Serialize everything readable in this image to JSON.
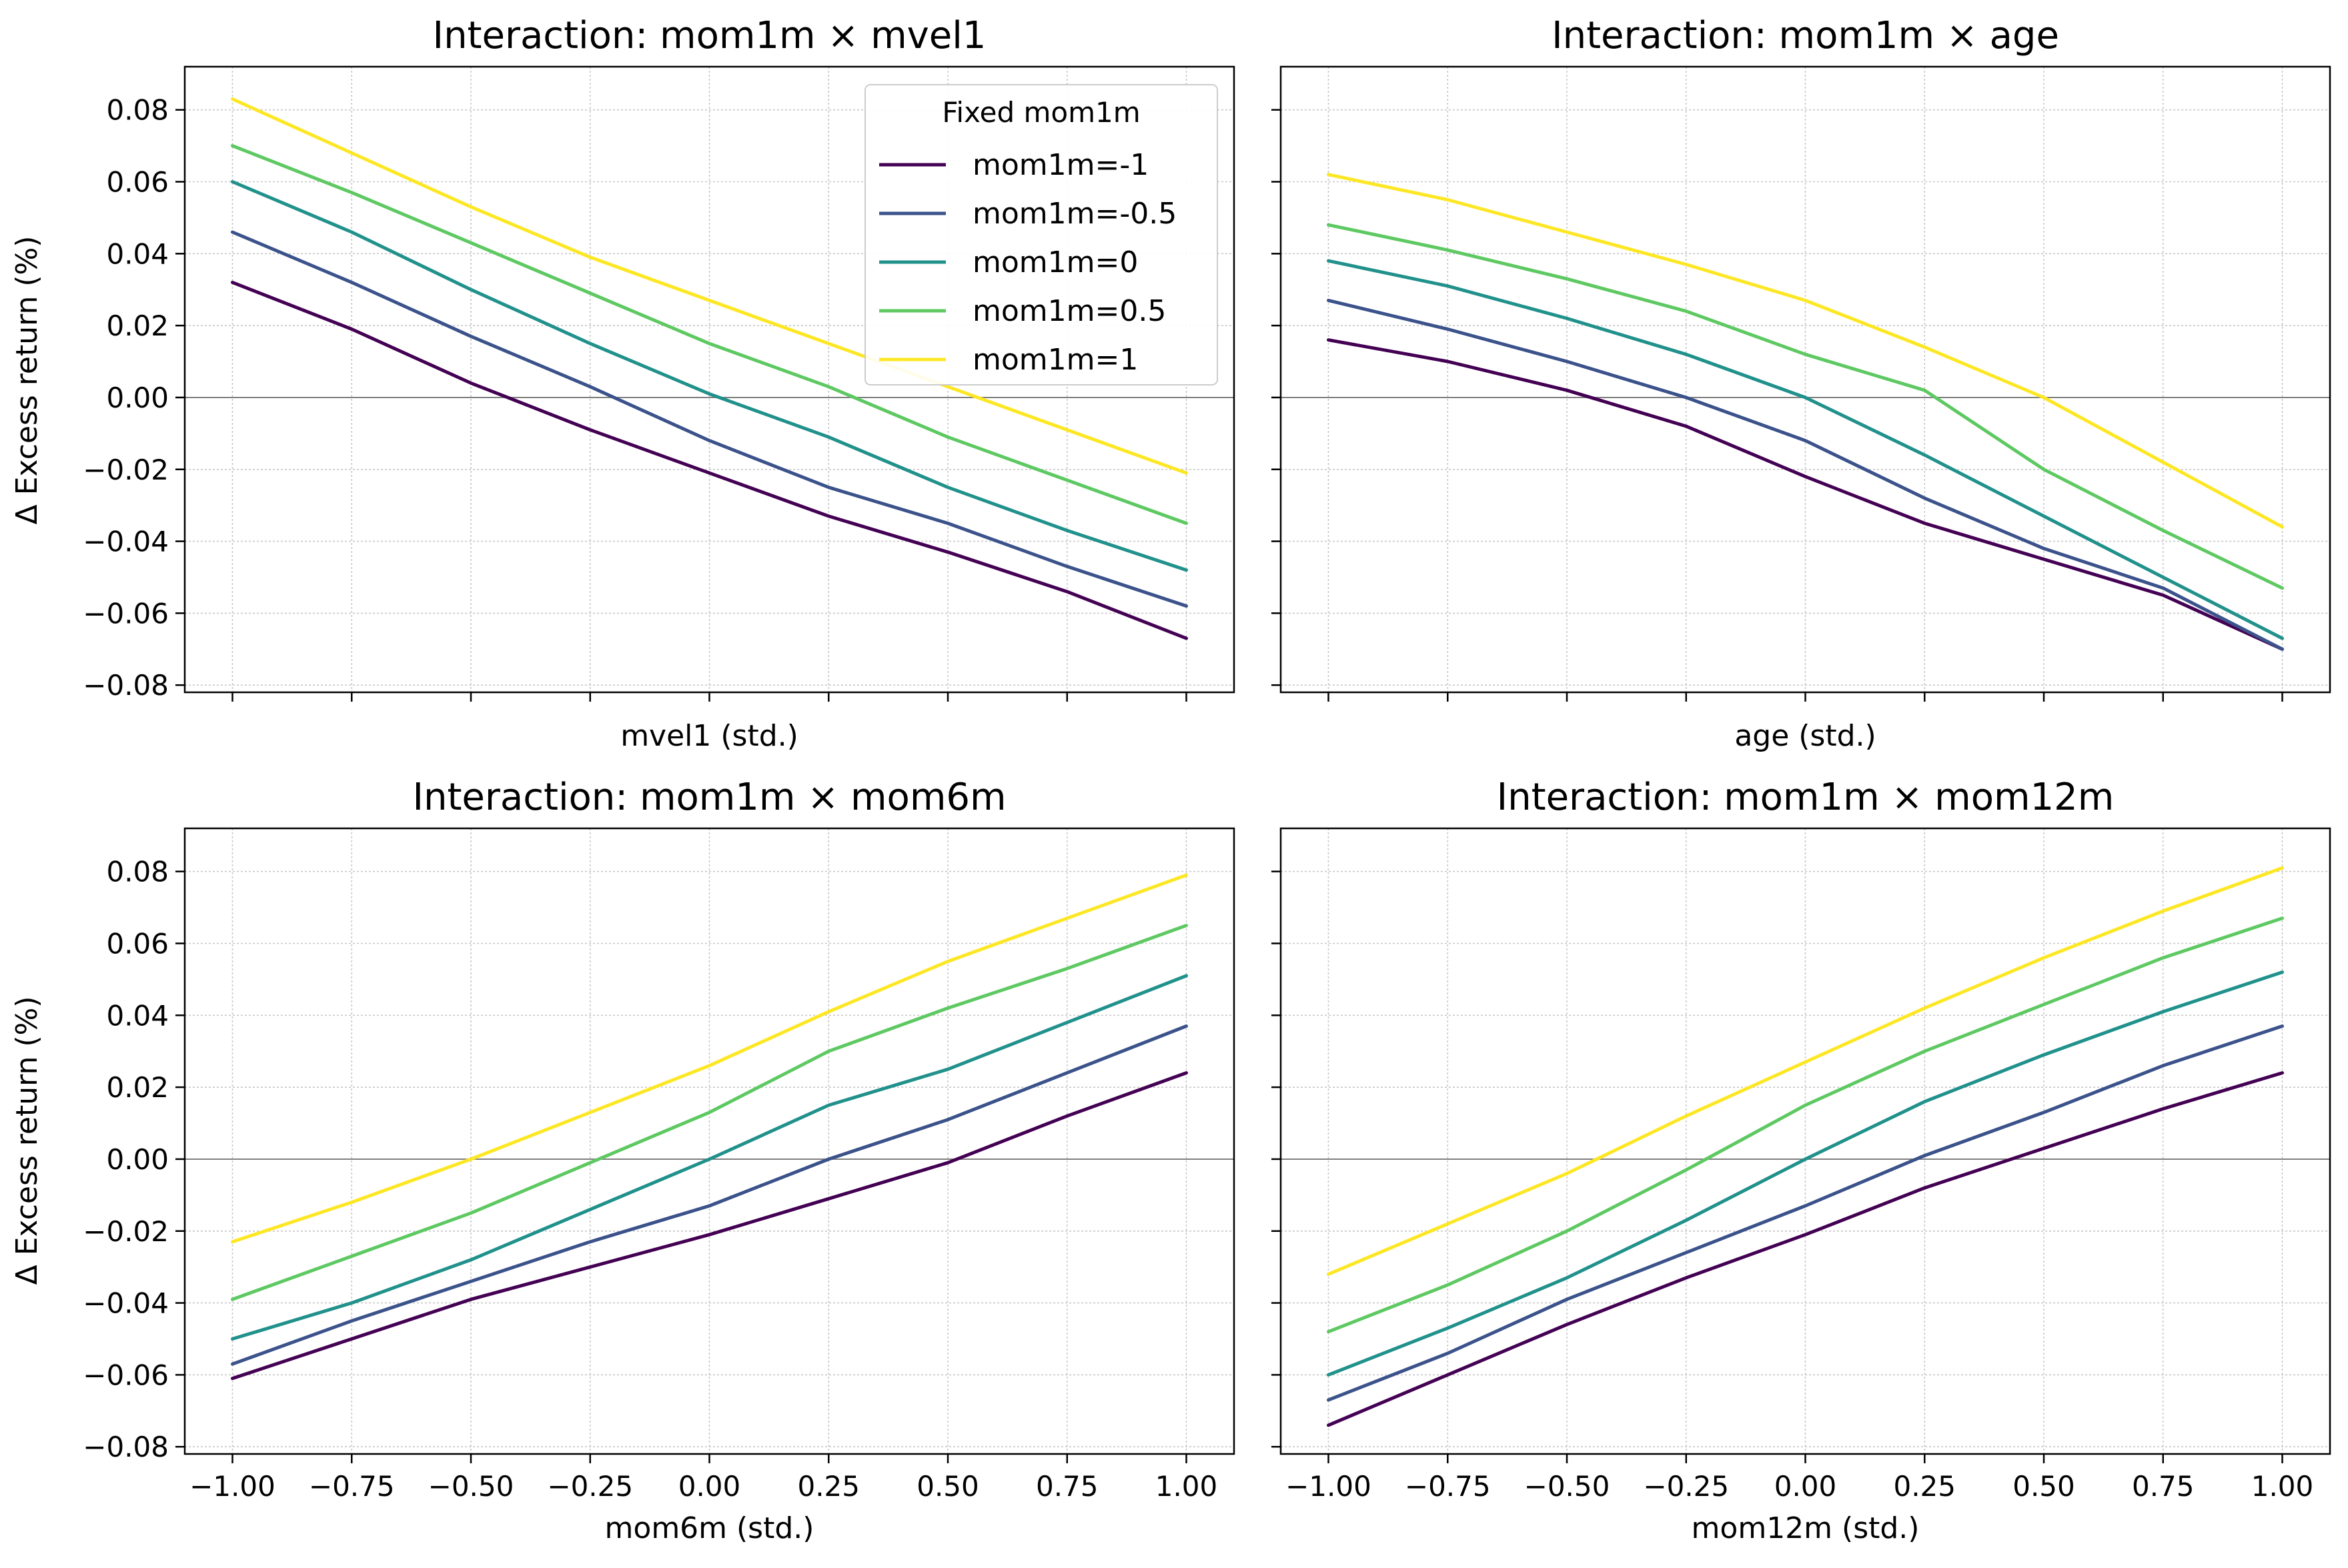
{
  "figure": {
    "ylabel": "Δ Excess return (%)",
    "legend_title": "Fixed mom1m",
    "legend_location": "top-right of first panel",
    "series_colors": [
      "#440154",
      "#3b528b",
      "#21918c",
      "#5ec962",
      "#fde725"
    ],
    "grid": true,
    "zero_line_color": "#808080"
  },
  "chart_data": [
    {
      "type": "line",
      "title": "Interaction: mom1m × mvel1",
      "xlabel": "mvel1 (std.)",
      "show_xticklabels": false,
      "xlim": [
        -1.1,
        1.1
      ],
      "ylim": [
        -0.082,
        0.092
      ],
      "xticks": [
        "-1.00",
        "-0.75",
        "-0.50",
        "-0.25",
        "0.00",
        "0.25",
        "0.50",
        "0.75",
        "1.00"
      ],
      "yticks": [
        "0.08",
        "0.06",
        "0.04",
        "0.02",
        "0.00",
        "−0.02",
        "−0.04",
        "−0.06",
        "−0.08"
      ],
      "x": [
        -1.0,
        -0.75,
        -0.5,
        -0.25,
        0.0,
        0.25,
        0.5,
        0.75,
        1.0
      ],
      "series": [
        {
          "name": "mom1m=-1",
          "values": [
            0.032,
            0.019,
            0.004,
            -0.009,
            -0.021,
            -0.033,
            -0.043,
            -0.054,
            -0.067
          ]
        },
        {
          "name": "mom1m=-0.5",
          "values": [
            0.046,
            0.032,
            0.017,
            0.003,
            -0.012,
            -0.025,
            -0.035,
            -0.047,
            -0.058
          ]
        },
        {
          "name": "mom1m=0",
          "values": [
            0.06,
            0.046,
            0.03,
            0.015,
            0.001,
            -0.011,
            -0.025,
            -0.037,
            -0.048
          ]
        },
        {
          "name": "mom1m=0.5",
          "values": [
            0.07,
            0.057,
            0.043,
            0.029,
            0.015,
            0.003,
            -0.011,
            -0.023,
            -0.035
          ]
        },
        {
          "name": "mom1m=1",
          "values": [
            0.083,
            0.068,
            0.053,
            0.039,
            0.027,
            0.015,
            0.003,
            -0.009,
            -0.021
          ]
        }
      ]
    },
    {
      "type": "line",
      "title": "Interaction: mom1m × age",
      "xlabel": "age (std.)",
      "show_xticklabels": false,
      "xlim": [
        -1.1,
        1.1
      ],
      "ylim": [
        -0.082,
        0.092
      ],
      "xticks": [
        "-1.00",
        "-0.75",
        "-0.50",
        "-0.25",
        "0.00",
        "0.25",
        "0.50",
        "0.75",
        "1.00"
      ],
      "yticks": [
        "0.08",
        "0.06",
        "0.04",
        "0.02",
        "0.00",
        "−0.02",
        "−0.04",
        "−0.06",
        "−0.08"
      ],
      "x": [
        -1.0,
        -0.75,
        -0.5,
        -0.25,
        0.0,
        0.25,
        0.5,
        0.75,
        1.0
      ],
      "series": [
        {
          "name": "mom1m=-1",
          "values": [
            0.016,
            0.01,
            0.002,
            -0.008,
            -0.022,
            -0.035,
            -0.045,
            -0.055,
            -0.07
          ]
        },
        {
          "name": "mom1m=-0.5",
          "values": [
            0.027,
            0.019,
            0.01,
            0.0,
            -0.012,
            -0.028,
            -0.042,
            -0.053,
            -0.07
          ]
        },
        {
          "name": "mom1m=0",
          "values": [
            0.038,
            0.031,
            0.022,
            0.012,
            0.0,
            -0.016,
            -0.033,
            -0.05,
            -0.067
          ]
        },
        {
          "name": "mom1m=0.5",
          "values": [
            0.048,
            0.041,
            0.033,
            0.024,
            0.012,
            0.002,
            -0.02,
            -0.037,
            -0.053
          ]
        },
        {
          "name": "mom1m=1",
          "values": [
            0.062,
            0.055,
            0.046,
            0.037,
            0.027,
            0.014,
            0.0,
            -0.018,
            -0.036
          ]
        }
      ]
    },
    {
      "type": "line",
      "title": "Interaction: mom1m × mom6m",
      "xlabel": "mom6m (std.)",
      "show_xticklabels": true,
      "xlim": [
        -1.1,
        1.1
      ],
      "ylim": [
        -0.082,
        0.092
      ],
      "xticks": [
        "−1.00",
        "−0.75",
        "−0.50",
        "−0.25",
        "0.00",
        "0.25",
        "0.50",
        "0.75",
        "1.00"
      ],
      "yticks": [
        "0.08",
        "0.06",
        "0.04",
        "0.02",
        "0.00",
        "−0.02",
        "−0.04",
        "−0.06",
        "−0.08"
      ],
      "x": [
        -1.0,
        -0.75,
        -0.5,
        -0.25,
        0.0,
        0.25,
        0.5,
        0.75,
        1.0
      ],
      "series": [
        {
          "name": "mom1m=-1",
          "values": [
            -0.061,
            -0.05,
            -0.039,
            -0.03,
            -0.021,
            -0.011,
            -0.001,
            0.012,
            0.024
          ]
        },
        {
          "name": "mom1m=-0.5",
          "values": [
            -0.057,
            -0.045,
            -0.034,
            -0.023,
            -0.013,
            0.0,
            0.011,
            0.024,
            0.037
          ]
        },
        {
          "name": "mom1m=0",
          "values": [
            -0.05,
            -0.04,
            -0.028,
            -0.014,
            0.0,
            0.015,
            0.025,
            0.038,
            0.051
          ]
        },
        {
          "name": "mom1m=0.5",
          "values": [
            -0.039,
            -0.027,
            -0.015,
            -0.001,
            0.013,
            0.03,
            0.042,
            0.053,
            0.065
          ]
        },
        {
          "name": "mom1m=1",
          "values": [
            -0.023,
            -0.012,
            0.0,
            0.013,
            0.026,
            0.041,
            0.055,
            0.067,
            0.079
          ]
        }
      ]
    },
    {
      "type": "line",
      "title": "Interaction: mom1m × mom12m",
      "xlabel": "mom12m (std.)",
      "show_xticklabels": true,
      "xlim": [
        -1.1,
        1.1
      ],
      "ylim": [
        -0.082,
        0.092
      ],
      "xticks": [
        "−1.00",
        "−0.75",
        "−0.50",
        "−0.25",
        "0.00",
        "0.25",
        "0.50",
        "0.75",
        "1.00"
      ],
      "yticks": [
        "0.08",
        "0.06",
        "0.04",
        "0.02",
        "0.00",
        "−0.02",
        "−0.04",
        "−0.06",
        "−0.08"
      ],
      "x": [
        -1.0,
        -0.75,
        -0.5,
        -0.25,
        0.0,
        0.25,
        0.5,
        0.75,
        1.0
      ],
      "series": [
        {
          "name": "mom1m=-1",
          "values": [
            -0.074,
            -0.06,
            -0.046,
            -0.033,
            -0.021,
            -0.008,
            0.003,
            0.014,
            0.024
          ]
        },
        {
          "name": "mom1m=-0.5",
          "values": [
            -0.067,
            -0.054,
            -0.039,
            -0.026,
            -0.013,
            0.001,
            0.013,
            0.026,
            0.037
          ]
        },
        {
          "name": "mom1m=0",
          "values": [
            -0.06,
            -0.047,
            -0.033,
            -0.017,
            0.0,
            0.016,
            0.029,
            0.041,
            0.052
          ]
        },
        {
          "name": "mom1m=0.5",
          "values": [
            -0.048,
            -0.035,
            -0.02,
            -0.003,
            0.015,
            0.03,
            0.043,
            0.056,
            0.067
          ]
        },
        {
          "name": "mom1m=1",
          "values": [
            -0.032,
            -0.018,
            -0.004,
            0.012,
            0.027,
            0.042,
            0.056,
            0.069,
            0.081
          ]
        }
      ]
    }
  ]
}
